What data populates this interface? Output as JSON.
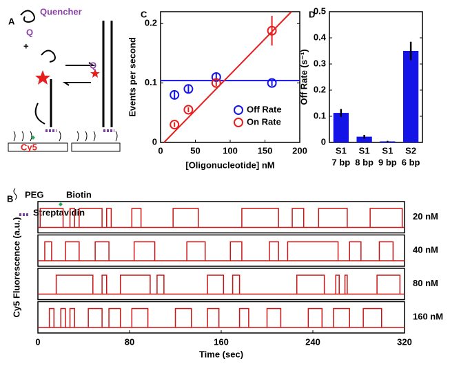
{
  "panel_labels": [
    "A",
    "B",
    "C",
    "D"
  ],
  "diagram": {
    "labels": [
      "Quencher",
      "Q",
      "+",
      "Q",
      "Cy5",
      "PEG",
      "Biotin",
      "Streptavidin"
    ]
  },
  "chart_data": [
    {
      "type": "scatter",
      "xlabel": "[Oligonucleotide] nM",
      "ylabel": "Events per second",
      "xlim": [
        0,
        200
      ],
      "xticks": [
        0,
        50,
        100,
        150,
        200
      ],
      "ylim": [
        0,
        0.22
      ],
      "yticks": [
        0,
        0.1,
        0.2
      ],
      "legend": "lower right",
      "series": [
        {
          "name": "Off Rate",
          "color": "#1414e6",
          "x": [
            20,
            40,
            80,
            160
          ],
          "values": [
            0.08,
            0.09,
            0.11,
            0.1
          ],
          "errors": [
            0.006,
            0.006,
            0.006,
            0.005
          ]
        },
        {
          "name": "On Rate",
          "color": "#e61e1e",
          "x": [
            20,
            40,
            80,
            160
          ],
          "values": [
            0.03,
            0.055,
            0.1,
            0.188
          ],
          "errors": [
            0.004,
            0.004,
            0.005,
            0.025
          ]
        }
      ],
      "fit_lines": [
        {
          "color": "#1414e6",
          "x": [
            0,
            200
          ],
          "values": [
            0.104,
            0.104
          ]
        },
        {
          "color": "#e61e1e",
          "x": [
            5,
            188
          ],
          "values": [
            0,
            0.22
          ]
        }
      ]
    },
    {
      "type": "bar",
      "ylabel": "Off Rate (s⁻¹)",
      "categories": [
        "S1",
        "S1",
        "S1",
        "S2"
      ],
      "sublabels": [
        "7 bp",
        "8 bp",
        "9 bp",
        "6 bp"
      ],
      "values": [
        0.113,
        0.022,
        0.004,
        0.35
      ],
      "errors": [
        0.015,
        0.007,
        0.002,
        0.035
      ],
      "color": "#1414e6",
      "ylim": [
        0,
        0.5
      ],
      "yticks": [
        0,
        0.1,
        0.2,
        0.3,
        0.4,
        0.5
      ]
    },
    {
      "type": "step",
      "xlabel": "Time (sec)",
      "ylabel": "Cy5 Fluorescence (a.u.)",
      "color": "#c81414",
      "xlim": [
        0,
        320
      ],
      "xticks": [
        0,
        80,
        160,
        240,
        320
      ],
      "traces": [
        {
          "label": "20 nM",
          "on": [
            [
              2,
              22
            ],
            [
              28,
              32
            ],
            [
              36,
              56
            ],
            [
              60,
              64
            ],
            [
              82,
              90
            ],
            [
              118,
              140
            ],
            [
              178,
              210
            ],
            [
              222,
              232
            ],
            [
              245,
              270
            ],
            [
              290,
              318
            ]
          ]
        },
        {
          "label": "40 nM",
          "on": [
            [
              6,
              12
            ],
            [
              24,
              36
            ],
            [
              50,
              62
            ],
            [
              84,
              102
            ],
            [
              130,
              146
            ],
            [
              168,
              178
            ],
            [
              202,
              210
            ],
            [
              218,
              262
            ],
            [
              272,
              282
            ],
            [
              298,
              310
            ]
          ]
        },
        {
          "label": "80 nM",
          "on": [
            [
              16,
              48
            ],
            [
              56,
              60
            ],
            [
              72,
              98
            ],
            [
              104,
              110
            ],
            [
              148,
              162
            ],
            [
              170,
              176
            ],
            [
              226,
              250
            ],
            [
              260,
              263
            ],
            [
              268,
              270
            ],
            [
              296,
              316
            ]
          ]
        },
        {
          "label": "160 nM",
          "on": [
            [
              10,
              14
            ],
            [
              20,
              24
            ],
            [
              28,
              32
            ],
            [
              44,
              56
            ],
            [
              62,
              72
            ],
            [
              82,
              96
            ],
            [
              120,
              134
            ],
            [
              148,
              158
            ],
            [
              176,
              184
            ],
            [
              200,
              212
            ],
            [
              236,
              248
            ],
            [
              258,
              272
            ],
            [
              284,
              300
            ]
          ]
        }
      ]
    }
  ]
}
